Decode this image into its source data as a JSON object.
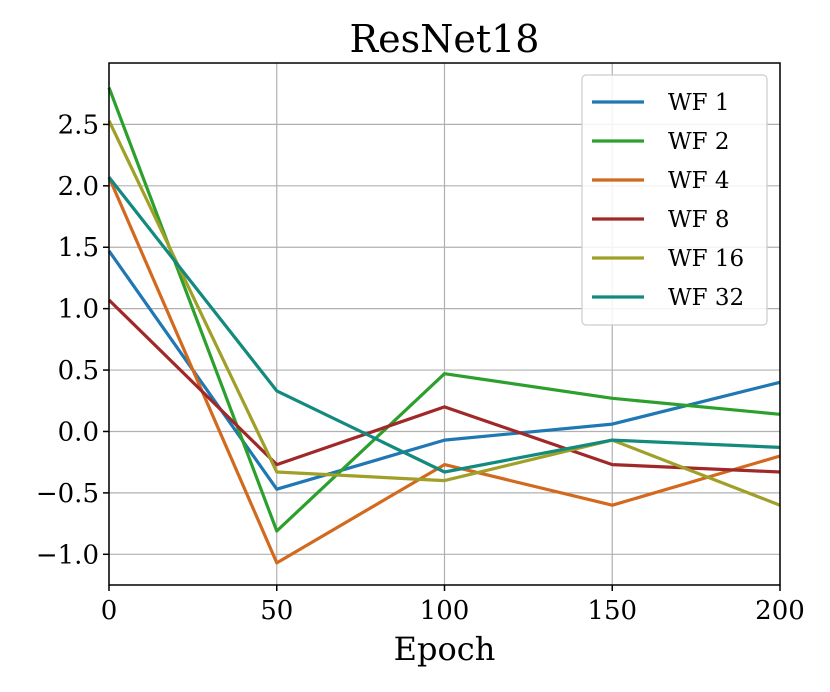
{
  "chart_data": {
    "type": "line",
    "title": "ResNet18",
    "xlabel": "Epoch",
    "ylabel": "",
    "x": [
      0,
      50,
      100,
      150,
      200
    ],
    "xlim": [
      0,
      200
    ],
    "ylim": [
      -1.25,
      3.0
    ],
    "xticks": [
      0,
      50,
      100,
      150,
      200
    ],
    "xtick_labels": [
      "0",
      "50",
      "100",
      "150",
      "200"
    ],
    "yticks": [
      -1.0,
      -0.5,
      0.0,
      0.5,
      1.0,
      1.5,
      2.0,
      2.5
    ],
    "ytick_labels": [
      "−1.0",
      "−0.5",
      "0.0",
      "0.5",
      "1.0",
      "1.5",
      "2.0",
      "2.5"
    ],
    "grid": true,
    "legend_position": "top-right",
    "series": [
      {
        "name": "WF 1",
        "color": "#1f77b4",
        "values": [
          1.47,
          -0.47,
          -0.07,
          0.06,
          0.4
        ]
      },
      {
        "name": "WF 2",
        "color": "#2ca02c",
        "values": [
          2.8,
          -0.81,
          0.47,
          0.27,
          0.14
        ]
      },
      {
        "name": "WF 4",
        "color": "#d2691e",
        "values": [
          2.07,
          -1.07,
          -0.27,
          -0.6,
          -0.2
        ]
      },
      {
        "name": "WF 8",
        "color": "#a02828",
        "values": [
          1.07,
          -0.27,
          0.2,
          -0.27,
          -0.33
        ]
      },
      {
        "name": "WF 16",
        "color": "#a0a028",
        "values": [
          2.53,
          -0.33,
          -0.4,
          -0.07,
          -0.6
        ]
      },
      {
        "name": "WF 32",
        "color": "#128a7e",
        "values": [
          2.07,
          0.33,
          -0.33,
          -0.07,
          -0.13
        ]
      }
    ]
  }
}
